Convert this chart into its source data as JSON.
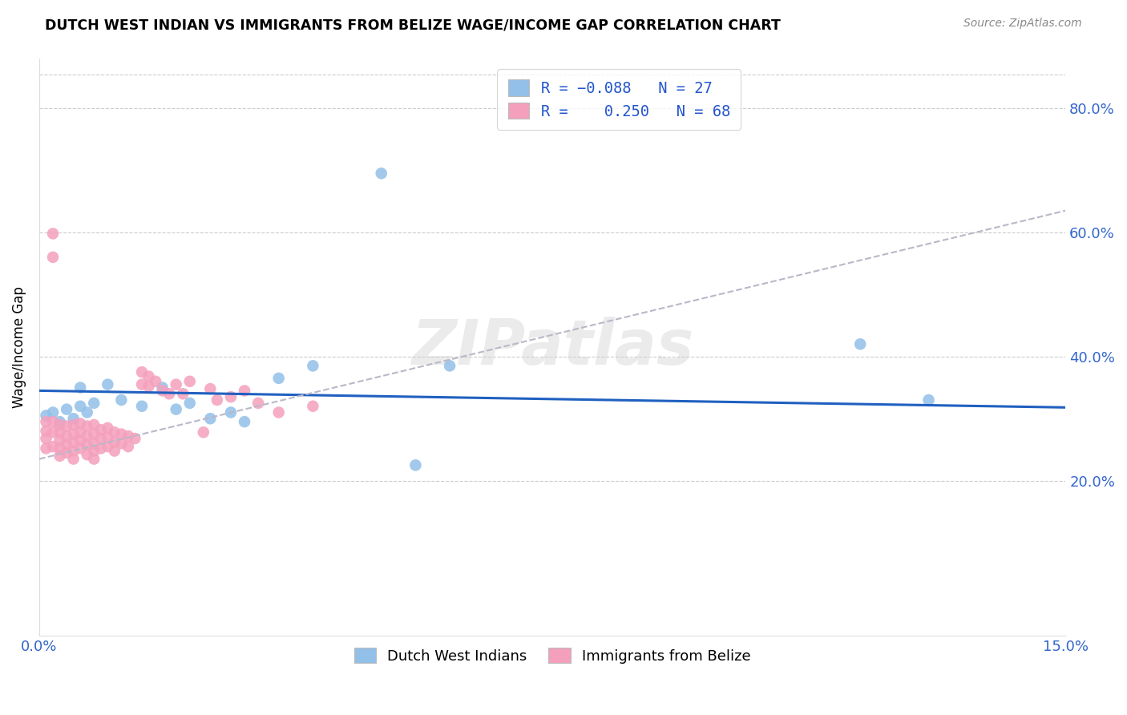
{
  "title": "DUTCH WEST INDIAN VS IMMIGRANTS FROM BELIZE WAGE/INCOME GAP CORRELATION CHART",
  "source": "Source: ZipAtlas.com",
  "ylabel": "Wage/Income Gap",
  "xlim": [
    0.0,
    0.15
  ],
  "ylim": [
    -0.05,
    0.88
  ],
  "xtick_positions": [
    0.0,
    0.03,
    0.06,
    0.09,
    0.12,
    0.15
  ],
  "xtick_labels": [
    "0.0%",
    "",
    "",
    "",
    "",
    "15.0%"
  ],
  "ytick_labels": [
    "20.0%",
    "40.0%",
    "60.0%",
    "80.0%"
  ],
  "ytick_positions": [
    0.2,
    0.4,
    0.6,
    0.8
  ],
  "blue_color": "#92C0E8",
  "pink_color": "#F4A0BC",
  "blue_line_color": "#2060C0",
  "pink_line_color": "#C8A0B0",
  "watermark": "ZIPatlas",
  "blue_scatter_x": [
    0.001,
    0.002,
    0.003,
    0.004,
    0.005,
    0.006,
    0.006,
    0.007,
    0.008,
    0.01,
    0.012,
    0.015,
    0.018,
    0.02,
    0.022,
    0.025,
    0.028,
    0.03,
    0.035,
    0.04,
    0.05,
    0.055,
    0.06,
    0.12,
    0.13
  ],
  "blue_scatter_y": [
    0.305,
    0.31,
    0.295,
    0.315,
    0.3,
    0.32,
    0.35,
    0.31,
    0.325,
    0.355,
    0.33,
    0.32,
    0.35,
    0.315,
    0.325,
    0.3,
    0.31,
    0.295,
    0.365,
    0.385,
    0.695,
    0.225,
    0.385,
    0.42,
    0.33
  ],
  "pink_scatter_x": [
    0.001,
    0.001,
    0.001,
    0.001,
    0.002,
    0.002,
    0.002,
    0.002,
    0.002,
    0.003,
    0.003,
    0.003,
    0.003,
    0.003,
    0.004,
    0.004,
    0.004,
    0.004,
    0.005,
    0.005,
    0.005,
    0.005,
    0.005,
    0.006,
    0.006,
    0.006,
    0.006,
    0.007,
    0.007,
    0.007,
    0.007,
    0.008,
    0.008,
    0.008,
    0.008,
    0.008,
    0.009,
    0.009,
    0.009,
    0.01,
    0.01,
    0.01,
    0.011,
    0.011,
    0.011,
    0.012,
    0.012,
    0.013,
    0.013,
    0.014,
    0.015,
    0.015,
    0.016,
    0.016,
    0.017,
    0.018,
    0.019,
    0.02,
    0.021,
    0.022,
    0.024,
    0.025,
    0.026,
    0.028,
    0.03,
    0.032,
    0.035,
    0.04
  ],
  "pink_scatter_y": [
    0.295,
    0.28,
    0.268,
    0.252,
    0.598,
    0.56,
    0.295,
    0.278,
    0.255,
    0.29,
    0.278,
    0.265,
    0.252,
    0.24,
    0.288,
    0.272,
    0.258,
    0.245,
    0.29,
    0.275,
    0.262,
    0.248,
    0.235,
    0.292,
    0.278,
    0.265,
    0.252,
    0.288,
    0.272,
    0.258,
    0.242,
    0.29,
    0.275,
    0.26,
    0.248,
    0.235,
    0.282,
    0.268,
    0.252,
    0.285,
    0.27,
    0.255,
    0.278,
    0.262,
    0.248,
    0.275,
    0.26,
    0.272,
    0.255,
    0.268,
    0.375,
    0.355,
    0.368,
    0.352,
    0.36,
    0.345,
    0.34,
    0.355,
    0.34,
    0.36,
    0.278,
    0.348,
    0.33,
    0.335,
    0.345,
    0.325,
    0.31,
    0.32
  ]
}
